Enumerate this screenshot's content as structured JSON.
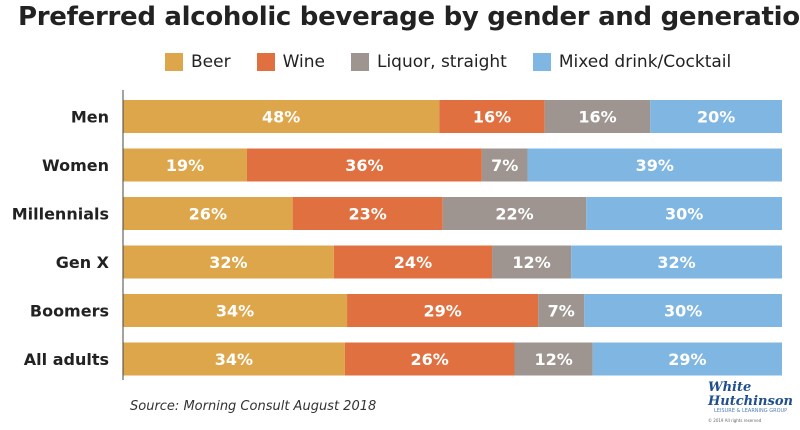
{
  "title": "Preferred alcoholic beverage by gender and generation",
  "source": "Source: Morning Consult August 2018",
  "logo": {
    "line1": "White",
    "line2": "Hutchinson",
    "tagline": "LEISURE & LEARNING GROUP",
    "copyright": "© 2019 All rights reserved"
  },
  "colors": {
    "beer": "#dea64a",
    "wine": "#e07040",
    "liquor": "#9e9590",
    "mixed": "#80b6e2"
  },
  "chart_data": {
    "type": "bar",
    "orientation": "horizontal",
    "stacked": true,
    "normalized": true,
    "title": "Preferred alcoholic beverage by gender and generation",
    "legend_position": "top",
    "categories": [
      "Men",
      "Women",
      "Millennials",
      "Gen X",
      "Boomers",
      "All adults"
    ],
    "series": [
      {
        "name": "Beer",
        "values": [
          48,
          19,
          26,
          32,
          34,
          34
        ],
        "labels": [
          "48%",
          "19%",
          "26%",
          "32%",
          "34%",
          "34%"
        ]
      },
      {
        "name": "Wine",
        "values": [
          16,
          36,
          23,
          24,
          29,
          26
        ],
        "labels": [
          "16%",
          "36%",
          "23%",
          "24%",
          "29%",
          "26%"
        ]
      },
      {
        "name": "Liquor, straight",
        "values": [
          16,
          7,
          22,
          12,
          7,
          12
        ],
        "labels": [
          "16%",
          "7%",
          "22%",
          "12%",
          "7%",
          "12%"
        ]
      },
      {
        "name": "Mixed drink/Cocktail",
        "values": [
          20,
          39,
          30,
          32,
          30,
          29
        ],
        "labels": [
          "20%",
          "39%",
          "30%",
          "32%",
          "30%",
          "29%"
        ]
      }
    ],
    "grid": false
  }
}
